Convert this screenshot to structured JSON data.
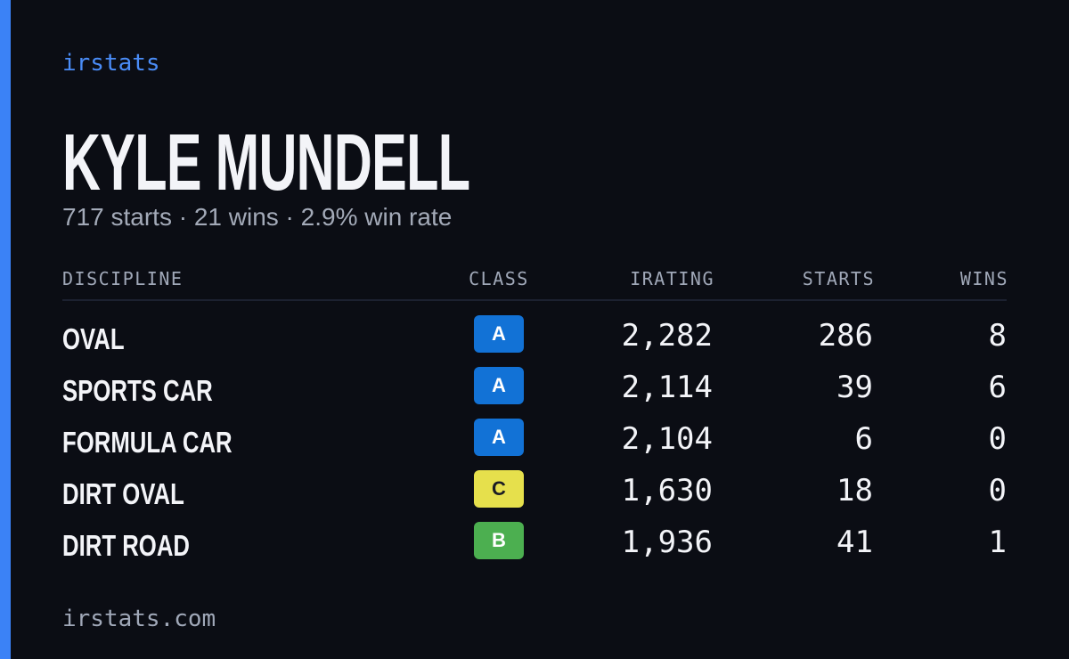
{
  "brand": "irstats",
  "driver": {
    "name": "KYLE MUNDELL",
    "summary": "717 starts · 21 wins · 2.9% win rate"
  },
  "table": {
    "headers": [
      "DISCIPLINE",
      "CLASS",
      "IRATING",
      "STARTS",
      "WINS"
    ],
    "rows": [
      {
        "discipline": "OVAL",
        "class": "A",
        "class_color": "#1272d6",
        "class_text_color": "#ffffff",
        "irating": "2,282",
        "starts": "286",
        "wins": "8"
      },
      {
        "discipline": "SPORTS CAR",
        "class": "A",
        "class_color": "#1272d6",
        "class_text_color": "#ffffff",
        "irating": "2,114",
        "starts": "39",
        "wins": "6"
      },
      {
        "discipline": "FORMULA CAR",
        "class": "A",
        "class_color": "#1272d6",
        "class_text_color": "#ffffff",
        "irating": "2,104",
        "starts": "6",
        "wins": "0"
      },
      {
        "discipline": "DIRT OVAL",
        "class": "C",
        "class_color": "#e6e04c",
        "class_text_color": "#1b1d24",
        "irating": "1,630",
        "starts": "18",
        "wins": "0"
      },
      {
        "discipline": "DIRT ROAD",
        "class": "B",
        "class_color": "#4caf50",
        "class_text_color": "#ffffff",
        "irating": "1,936",
        "starts": "41",
        "wins": "1"
      }
    ]
  },
  "footer": "irstats.com"
}
